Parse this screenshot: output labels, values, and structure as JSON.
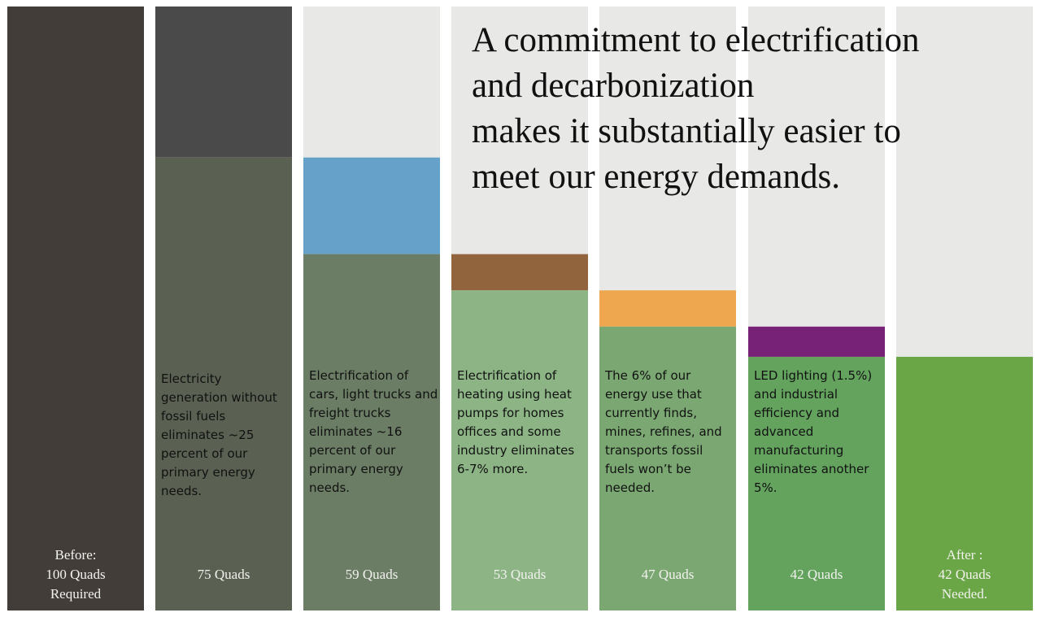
{
  "chart_data": {
    "type": "bar",
    "title": "A commitment to electrification\nand decarbonization\nmakes it substantially easier to\nmeet our energy demands.",
    "ylim": [
      0,
      100
    ],
    "grid": false,
    "categories": [
      "Before",
      "75 Quads",
      "59 Quads",
      "53 Quads",
      "47 Quads",
      "42 Quads",
      "After"
    ],
    "values": [
      100,
      75,
      59,
      53,
      47,
      42,
      42
    ],
    "eliminated": [
      0,
      25,
      16,
      6,
      6,
      5,
      0
    ],
    "bar_labels": [
      "Before:\n100 Quads\nRequired",
      "75 Quads",
      "59 Quads",
      "53 Quads",
      "47 Quads",
      "42 Quads",
      "After :\n42 Quads\nNeeded."
    ],
    "descriptions": [
      "",
      "Electricity generation without fossil fuels eliminates ~25 percent of our primary energy needs.",
      "Electrification of cars, light trucks and freight trucks eliminates ~16 percent of our primary energy needs.",
      "Electrification of heating using heat pumps for homes offices and some industry eliminates 6-7% more.",
      "The 6% of our energy use that currently finds, mines, refines, and transports fossil fuels won’t be needed.",
      "LED lighting (1.5%) and industrial efficiency and advanced manufacturing eliminates another 5%.",
      ""
    ],
    "bar_colors": [
      "#433d3a",
      "#5a6152",
      "#6b7d65",
      "#8cb485",
      "#7ba872",
      "#63a35e",
      "#6ba646"
    ],
    "eliminated_colors": [
      null,
      "#4a4a4a",
      "#65a1c8",
      "#92643d",
      "#efa74f",
      "#772177",
      null
    ],
    "background_color": "#e8e8e7"
  }
}
